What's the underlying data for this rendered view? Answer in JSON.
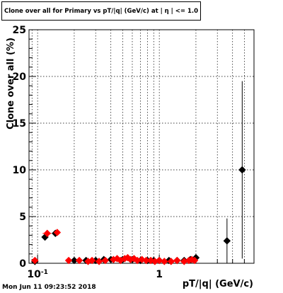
{
  "chart_data": {
    "type": "scatter",
    "title": "Clone  over all for Primary vs pT/|q| (GeV/c) at |  η | <= 1.0",
    "xlabel": "pT/|q| (GeV/c)",
    "ylabel": "Clone  over all (%)",
    "x_scale": "log",
    "xlim": [
      0.085,
      6.0
    ],
    "ylim": [
      0,
      25
    ],
    "grid": true,
    "x_ticks": [
      {
        "value": 0.1,
        "label": "10",
        "exponent": "-1"
      },
      {
        "value": 1,
        "label": "1",
        "exponent": ""
      }
    ],
    "y_ticks": [
      0,
      5,
      10,
      15,
      20,
      25
    ],
    "series": [
      {
        "color": "#000000",
        "marker": "diamond",
        "points": [
          {
            "x": 0.095,
            "y": 0.2,
            "xerr": 0.004,
            "yerr": 0.1
          },
          {
            "x": 0.115,
            "y": 2.8,
            "xerr": 0.006,
            "yerr": 0.3
          },
          {
            "x": 0.14,
            "y": 3.2,
            "xerr": 0.007,
            "yerr": 0.3
          },
          {
            "x": 0.2,
            "y": 0.3,
            "xerr": 0.006,
            "yerr": 0.1
          },
          {
            "x": 0.25,
            "y": 0.3,
            "xerr": 0.006,
            "yerr": 0.1
          },
          {
            "x": 0.3,
            "y": 0.3,
            "xerr": 0.006,
            "yerr": 0.1
          },
          {
            "x": 0.35,
            "y": 0.4,
            "xerr": 0.006,
            "yerr": 0.1
          },
          {
            "x": 0.4,
            "y": 0.4,
            "xerr": 0.008,
            "yerr": 0.1
          },
          {
            "x": 0.5,
            "y": 0.4,
            "xerr": 0.01,
            "yerr": 0.1
          },
          {
            "x": 0.6,
            "y": 0.4,
            "xerr": 0.012,
            "yerr": 0.1
          },
          {
            "x": 0.7,
            "y": 0.3,
            "xerr": 0.014,
            "yerr": 0.1
          },
          {
            "x": 0.8,
            "y": 0.3,
            "xerr": 0.016,
            "yerr": 0.1
          },
          {
            "x": 0.9,
            "y": 0.3,
            "xerr": 0.018,
            "yerr": 0.1
          },
          {
            "x": 1.0,
            "y": 0.3,
            "xerr": 0.02,
            "yerr": 0.1
          },
          {
            "x": 1.2,
            "y": 0.3,
            "xerr": 0.04,
            "yerr": 0.1
          },
          {
            "x": 1.4,
            "y": 0.3,
            "xerr": 0.05,
            "yerr": 0.1
          },
          {
            "x": 1.6,
            "y": 0.3,
            "xerr": 0.06,
            "yerr": 0.1
          },
          {
            "x": 1.8,
            "y": 0.4,
            "xerr": 0.07,
            "yerr": 0.1
          },
          {
            "x": 2.0,
            "y": 0.6,
            "xerr": 0.08,
            "yerr": 0.2
          },
          {
            "x": 3.6,
            "y": 2.4,
            "xerr": 0.02,
            "yerr": 2.4
          },
          {
            "x": 4.8,
            "y": 10.0,
            "xerr": 0.02,
            "yerr": 9.5
          }
        ]
      },
      {
        "color": "#ff0000",
        "marker": "diamond",
        "points": [
          {
            "x": 0.095,
            "y": 0.3,
            "xerr": 0.004,
            "yerr": 0.1
          },
          {
            "x": 0.12,
            "y": 3.2,
            "xerr": 0.01,
            "yerr": 0.3
          },
          {
            "x": 0.145,
            "y": 3.3,
            "xerr": 0.008,
            "yerr": 0.3
          },
          {
            "x": 0.18,
            "y": 0.3,
            "xerr": 0.008,
            "yerr": 0.1
          },
          {
            "x": 0.22,
            "y": 0.3,
            "xerr": 0.006,
            "yerr": 0.1
          },
          {
            "x": 0.26,
            "y": 0.2,
            "xerr": 0.006,
            "yerr": 0.1
          },
          {
            "x": 0.28,
            "y": 0.3,
            "xerr": 0.006,
            "yerr": 0.1
          },
          {
            "x": 0.32,
            "y": 0.2,
            "xerr": 0.006,
            "yerr": 0.1
          },
          {
            "x": 0.36,
            "y": 0.3,
            "xerr": 0.006,
            "yerr": 0.1
          },
          {
            "x": 0.42,
            "y": 0.4,
            "xerr": 0.008,
            "yerr": 0.1
          },
          {
            "x": 0.45,
            "y": 0.5,
            "xerr": 0.008,
            "yerr": 0.1
          },
          {
            "x": 0.48,
            "y": 0.3,
            "xerr": 0.008,
            "yerr": 0.1
          },
          {
            "x": 0.52,
            "y": 0.5,
            "xerr": 0.008,
            "yerr": 0.1
          },
          {
            "x": 0.55,
            "y": 0.6,
            "xerr": 0.008,
            "yerr": 0.1
          },
          {
            "x": 0.58,
            "y": 0.4,
            "xerr": 0.008,
            "yerr": 0.1
          },
          {
            "x": 0.62,
            "y": 0.5,
            "xerr": 0.01,
            "yerr": 0.1
          },
          {
            "x": 0.66,
            "y": 0.3,
            "xerr": 0.01,
            "yerr": 0.1
          },
          {
            "x": 0.72,
            "y": 0.4,
            "xerr": 0.01,
            "yerr": 0.1
          },
          {
            "x": 0.78,
            "y": 0.3,
            "xerr": 0.01,
            "yerr": 0.1
          },
          {
            "x": 0.85,
            "y": 0.3,
            "xerr": 0.01,
            "yerr": 0.1
          },
          {
            "x": 0.92,
            "y": 0.2,
            "xerr": 0.01,
            "yerr": 0.1
          },
          {
            "x": 1.0,
            "y": 0.3,
            "xerr": 0.02,
            "yerr": 0.1
          },
          {
            "x": 1.1,
            "y": 0.2,
            "xerr": 0.03,
            "yerr": 0.1
          },
          {
            "x": 1.25,
            "y": 0.2,
            "xerr": 0.04,
            "yerr": 0.1
          },
          {
            "x": 1.4,
            "y": 0.3,
            "xerr": 0.04,
            "yerr": 0.1
          },
          {
            "x": 1.6,
            "y": 0.2,
            "xerr": 0.05,
            "yerr": 0.1
          },
          {
            "x": 1.75,
            "y": 0.3,
            "xerr": 0.05,
            "yerr": 0.1
          },
          {
            "x": 1.85,
            "y": 0.4,
            "xerr": 0.05,
            "yerr": 0.1
          },
          {
            "x": 1.95,
            "y": 0.3,
            "xerr": 0.05,
            "yerr": 0.1
          }
        ]
      }
    ]
  },
  "timestamp": "Mon Jun 11 09:23:52 2018"
}
